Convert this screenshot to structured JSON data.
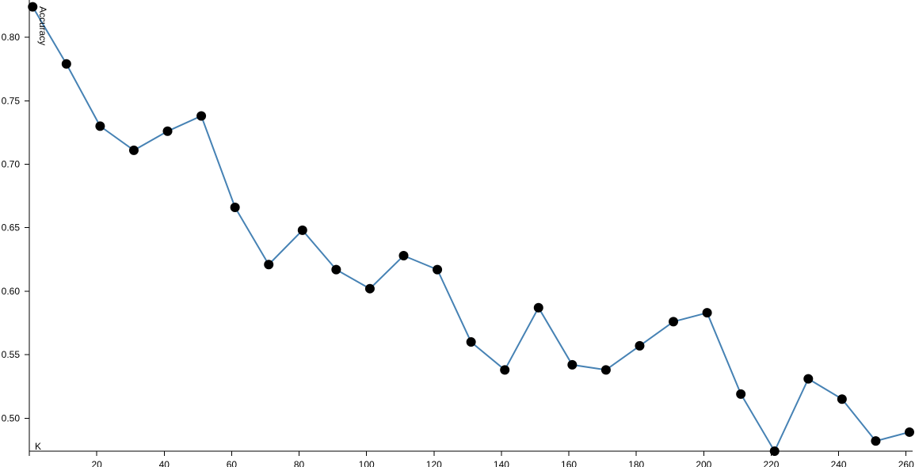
{
  "chart_data": {
    "type": "line",
    "title": "",
    "xlabel": "K",
    "ylabel": "Accuracy",
    "xlim": [
      0,
      261
    ],
    "ylim": [
      0.474,
      0.825
    ],
    "x_ticks": [
      20,
      40,
      60,
      80,
      100,
      120,
      140,
      160,
      180,
      200,
      220,
      240,
      260
    ],
    "y_ticks": [
      0.5,
      0.55,
      0.6,
      0.65,
      0.7,
      0.75,
      0.8
    ],
    "grid": false,
    "legend": "none",
    "line_color": "#4682b4",
    "marker_color": "#000000",
    "x": [
      1,
      11,
      21,
      31,
      41,
      51,
      61,
      71,
      81,
      91,
      101,
      111,
      121,
      131,
      141,
      151,
      161,
      171,
      181,
      191,
      201,
      211,
      221,
      231,
      241,
      251,
      261
    ],
    "series": [
      {
        "values": [
          0.824,
          0.779,
          0.73,
          0.711,
          0.726,
          0.738,
          0.666,
          0.621,
          0.648,
          0.617,
          0.602,
          0.628,
          0.617,
          0.56,
          0.538,
          0.587,
          0.542,
          0.538,
          0.557,
          0.576,
          0.583,
          0.519,
          0.474,
          0.531,
          0.515,
          0.482,
          0.489
        ]
      }
    ]
  }
}
